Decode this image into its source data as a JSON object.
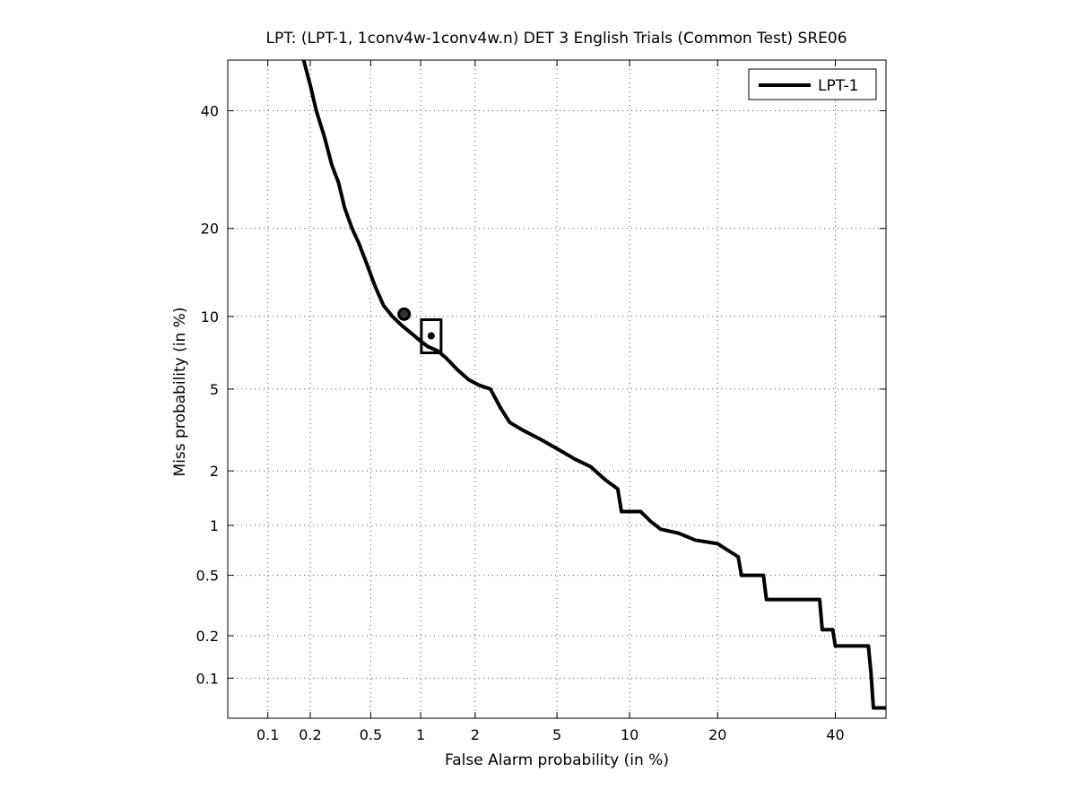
{
  "chart_data": {
    "type": "line",
    "title": "LPT: (LPT-1, 1conv4w-1conv4w.n) DET 3 English Trials (Common Test) SRE06",
    "xlabel": "False Alarm probability (in %)",
    "ylabel": "Miss probability (in %)",
    "x_scale": "probit",
    "y_scale": "probit",
    "xlim": [
      0.05,
      50
    ],
    "ylim": [
      0.05,
      50
    ],
    "grid": true,
    "legend_position": "top-right",
    "x_ticks": [
      "0.1",
      "0.2",
      "0.5",
      "1",
      "2",
      "5",
      "10",
      "20",
      "40"
    ],
    "y_ticks": [
      "0.1",
      "0.2",
      "0.5",
      "1",
      "2",
      "5",
      "10",
      "20",
      "40"
    ],
    "series": [
      {
        "name": "LPT-1",
        "color": "#000000",
        "x": [
          0.18,
          0.2,
          0.22,
          0.25,
          0.28,
          0.31,
          0.34,
          0.38,
          0.42,
          0.47,
          0.53,
          0.6,
          0.68,
          0.78,
          0.9,
          1.0,
          1.1,
          1.25,
          1.4,
          1.6,
          1.85,
          2.1,
          2.4,
          2.7,
          3.0,
          3.5,
          4.2,
          5.0,
          6.0,
          7.0,
          8.0,
          9.0,
          9.3,
          11.0,
          12.0,
          13.0,
          15.0,
          17.0,
          20.0,
          23.0,
          23.5,
          27.0,
          27.5,
          37.0,
          37.5,
          39.5,
          40.0,
          46.5,
          47.0,
          47.5,
          50.0
        ],
        "y": [
          50,
          45,
          40,
          35,
          30,
          27,
          23,
          20,
          18,
          15.5,
          13,
          11,
          10,
          9.2,
          8.5,
          8,
          7.6,
          7.3,
          6.8,
          6.1,
          5.5,
          5.2,
          5.0,
          4.1,
          3.5,
          3.2,
          2.9,
          2.6,
          2.3,
          2.1,
          1.8,
          1.6,
          1.2,
          1.2,
          1.05,
          0.95,
          0.9,
          0.82,
          0.78,
          0.65,
          0.5,
          0.5,
          0.35,
          0.35,
          0.22,
          0.22,
          0.17,
          0.17,
          0.11,
          0.06,
          0.06
        ]
      }
    ],
    "markers": [
      {
        "name": "actual-decision-point",
        "shape": "circle",
        "x": 0.8,
        "y": 10.2
      },
      {
        "name": "min-dcf-point",
        "shape": "rectangle",
        "x": 1.15,
        "y": 8.4
      }
    ]
  }
}
